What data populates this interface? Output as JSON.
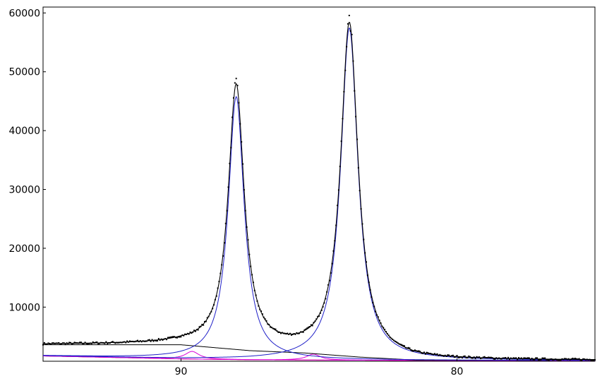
{
  "chart_data": {
    "type": "line",
    "title": "",
    "xlabel": "",
    "ylabel": "",
    "x_reversed": true,
    "xlim": [
      95,
      75
    ],
    "ylim": [
      800,
      61000
    ],
    "grid": false,
    "legend": "none",
    "x_ticks": [
      {
        "value": 90,
        "label": "90"
      },
      {
        "value": 80,
        "label": "80"
      }
    ],
    "y_ticks": [
      {
        "value": 10000,
        "label": "10000"
      },
      {
        "value": 20000,
        "label": "20000"
      },
      {
        "value": 30000,
        "label": "30000"
      },
      {
        "value": 40000,
        "label": "40000"
      },
      {
        "value": 50000,
        "label": "50000"
      },
      {
        "value": 60000,
        "label": "60000"
      }
    ],
    "peaks": [
      {
        "center": 88.0,
        "height": 44700,
        "hwhm": 0.35
      },
      {
        "center": 83.9,
        "height": 56500,
        "hwhm": 0.38
      }
    ],
    "satellite_peaks": [
      {
        "center": 89.6,
        "height": 1300,
        "hwhm": 0.3
      },
      {
        "center": 85.2,
        "height": 1000,
        "hwhm": 0.3
      }
    ],
    "background": [
      {
        "x": 95.0,
        "y": 3600
      },
      {
        "x": 90.0,
        "y": 3600
      },
      {
        "x": 87.5,
        "y": 2600
      },
      {
        "x": 85.5,
        "y": 2200
      },
      {
        "x": 83.5,
        "y": 1500
      },
      {
        "x": 81.5,
        "y": 1000
      },
      {
        "x": 75.0,
        "y": 950
      }
    ],
    "baseline": [
      {
        "x": 95.0,
        "y": 1700
      },
      {
        "x": 90.0,
        "y": 1200
      },
      {
        "x": 87.5,
        "y": 1050
      },
      {
        "x": 85.0,
        "y": 1000
      },
      {
        "x": 82.0,
        "y": 950
      },
      {
        "x": 75.0,
        "y": 900
      }
    ],
    "series": [
      {
        "role": "observed",
        "color": "#000000",
        "marker": "point"
      },
      {
        "role": "fit",
        "color": "#000000"
      },
      {
        "role": "peak-components",
        "color": "#1f1fc8"
      },
      {
        "role": "satellite-components",
        "color": "#d800d8"
      },
      {
        "role": "background",
        "color": "#000000"
      },
      {
        "role": "baseline",
        "color": "#b40000"
      }
    ]
  }
}
